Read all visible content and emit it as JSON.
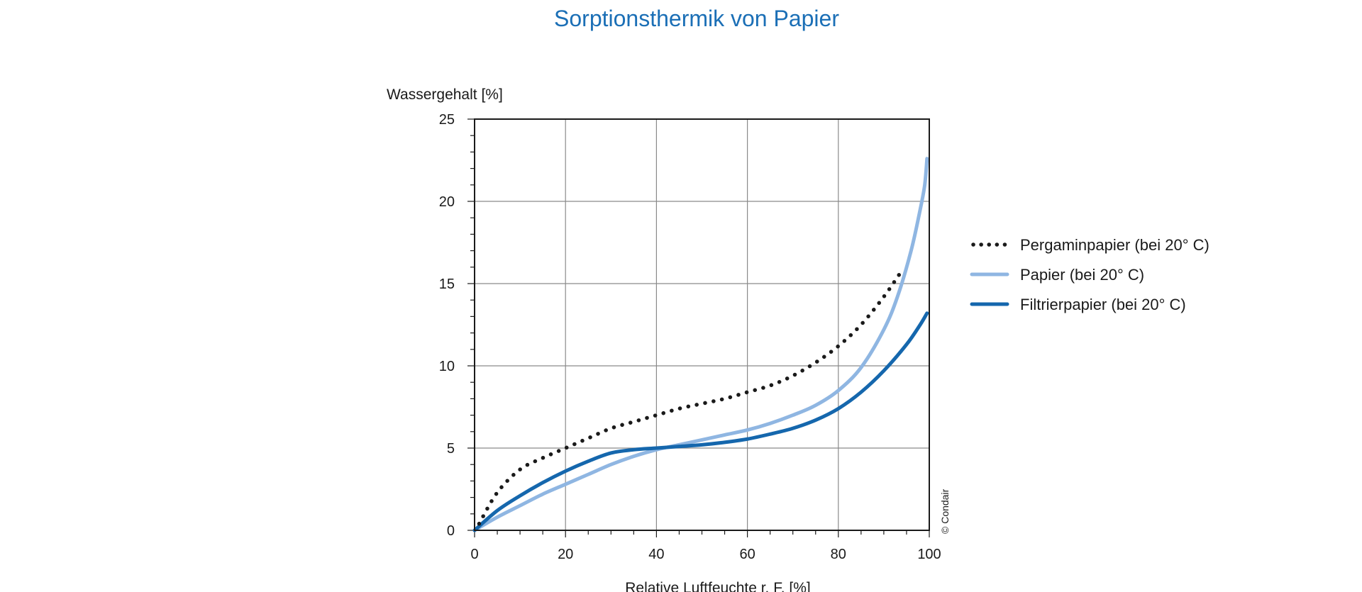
{
  "chart_data": {
    "type": "line",
    "title": "Sorptionsthermik von Papier",
    "xlabel": "Relative Luftfeuchte r. F. [%]",
    "ylabel": "Wassergehalt [%]",
    "xlim": [
      0,
      100
    ],
    "ylim": [
      0,
      25
    ],
    "x_ticks": [
      "0",
      "20",
      "40",
      "60",
      "80",
      "100"
    ],
    "y_ticks": [
      "0",
      "5",
      "10",
      "15",
      "20",
      "25"
    ],
    "grid": true,
    "legend_position": "right",
    "credit": "© Condair",
    "series": [
      {
        "name": "Pergaminpapier (bei 20° C)",
        "color": "#1a1a1a",
        "style": "dotted",
        "x": [
          1,
          5,
          10,
          15,
          20,
          25,
          30,
          35,
          40,
          45,
          50,
          55,
          60,
          65,
          70,
          75,
          80,
          85,
          90,
          94
        ],
        "y": [
          0.4,
          2.3,
          3.7,
          4.4,
          5.0,
          5.6,
          6.2,
          6.6,
          7.0,
          7.4,
          7.7,
          8.0,
          8.4,
          8.8,
          9.4,
          10.2,
          11.2,
          12.5,
          14.2,
          15.8
        ]
      },
      {
        "name": "Papier (bei 20° C)",
        "color": "#8fb6e2",
        "style": "solid",
        "x": [
          0,
          5,
          10,
          15,
          20,
          25,
          30,
          35,
          40,
          45,
          50,
          55,
          60,
          65,
          70,
          75,
          80,
          85,
          90,
          93,
          96,
          98,
          99,
          99.5
        ],
        "y": [
          0.0,
          0.8,
          1.5,
          2.2,
          2.8,
          3.4,
          4.0,
          4.5,
          4.9,
          5.2,
          5.5,
          5.8,
          6.1,
          6.5,
          7.0,
          7.6,
          8.5,
          9.9,
          12.2,
          14.2,
          17.0,
          19.5,
          21.0,
          22.6
        ]
      },
      {
        "name": "Filtrierpapier (bei 20° C)",
        "color": "#1567ad",
        "style": "solid",
        "x": [
          0,
          5,
          10,
          15,
          20,
          25,
          30,
          35,
          40,
          45,
          50,
          55,
          60,
          65,
          70,
          75,
          80,
          85,
          90,
          95,
          98,
          99.5
        ],
        "y": [
          0.0,
          1.2,
          2.1,
          2.9,
          3.6,
          4.2,
          4.7,
          4.9,
          5.0,
          5.1,
          5.2,
          5.35,
          5.55,
          5.85,
          6.2,
          6.7,
          7.4,
          8.4,
          9.7,
          11.3,
          12.5,
          13.2
        ]
      }
    ]
  }
}
